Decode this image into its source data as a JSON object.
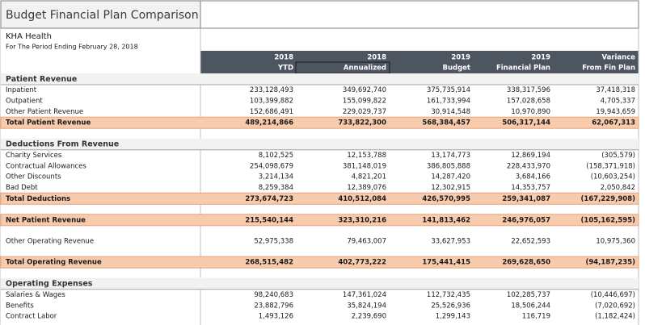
{
  "header": {
    "title": "Budget Financial Plan Comparison",
    "organization": "KHA Health",
    "period": "For The Period Ending February 28, 2018"
  },
  "table": {
    "columns": [
      {
        "line1": "2018",
        "line2": "YTD"
      },
      {
        "line1": "2018",
        "line2": "Annualized"
      },
      {
        "line1": "2019",
        "line2": "Budget"
      },
      {
        "line1": "2019",
        "line2": "Financial Plan"
      },
      {
        "line1": "Variance",
        "line2": "From Fin Plan"
      }
    ],
    "blocks": [
      {
        "heading": "Patient Revenue",
        "rows": [
          {
            "label": "Inpatient",
            "values": [
              "233,128,493",
              "349,692,740",
              "375,735,914",
              "338,317,596",
              "37,418,318"
            ]
          },
          {
            "label": "Outpatient",
            "values": [
              "103,399,882",
              "155,099,822",
              "161,733,994",
              "157,028,658",
              "4,705,337"
            ]
          },
          {
            "label": "Other Patient Revenue",
            "values": [
              "152,686,491",
              "229,029,737",
              "30,914,548",
              "10,970,890",
              "19,943,659"
            ]
          }
        ],
        "total": {
          "label": "Total Patient Revenue",
          "values": [
            "489,214,866",
            "733,822,300",
            "568,384,457",
            "506,317,144",
            "62,067,313"
          ]
        }
      },
      {
        "heading": "Deductions From Revenue",
        "rows": [
          {
            "label": "Charity Services",
            "values": [
              "8,102,525",
              "12,153,788",
              "13,174,773",
              "12,869,194",
              "(305,579)"
            ]
          },
          {
            "label": "Contractual Allowances",
            "values": [
              "254,098,679",
              "381,148,019",
              "386,805,888",
              "228,433,970",
              "(158,371,918)"
            ]
          },
          {
            "label": "Other Discounts",
            "values": [
              "3,214,134",
              "4,821,201",
              "14,287,420",
              "3,684,166",
              "(10,603,254)"
            ]
          },
          {
            "label": "Bad Debt",
            "values": [
              "8,259,384",
              "12,389,076",
              "12,302,915",
              "14,353,757",
              "2,050,842"
            ]
          }
        ],
        "total": {
          "label": "Total Deductions",
          "values": [
            "273,674,723",
            "410,512,084",
            "426,570,995",
            "259,341,087",
            "(167,229,908)"
          ]
        }
      },
      {
        "total": {
          "label": "Net Patient Revenue",
          "values": [
            "215,540,144",
            "323,310,216",
            "141,813,462",
            "246,976,057",
            "(105,162,595)"
          ]
        }
      },
      {
        "rows": [
          {
            "label": "Other Operating Revenue",
            "values": [
              "52,975,338",
              "79,463,007",
              "33,627,953",
              "22,652,593",
              "10,975,360"
            ]
          }
        ]
      },
      {
        "total": {
          "label": "Total Operating Revenue",
          "values": [
            "268,515,482",
            "402,773,222",
            "175,441,415",
            "269,628,650",
            "(94,187,235)"
          ]
        }
      },
      {
        "heading": "Operating Expenses",
        "rows": [
          {
            "label": "Salaries & Wages",
            "values": [
              "98,240,683",
              "147,361,024",
              "112,732,435",
              "102,285,737",
              "(10,446,697)"
            ]
          },
          {
            "label": "Benefits",
            "values": [
              "23,882,796",
              "35,824,194",
              "25,526,936",
              "18,506,244",
              "(7,020,692)"
            ]
          },
          {
            "label": "Contract Labor",
            "values": [
              "1,493,126",
              "2,239,690",
              "1,299,143",
              "116,719",
              "(1,182,424)"
            ]
          }
        ]
      }
    ]
  }
}
